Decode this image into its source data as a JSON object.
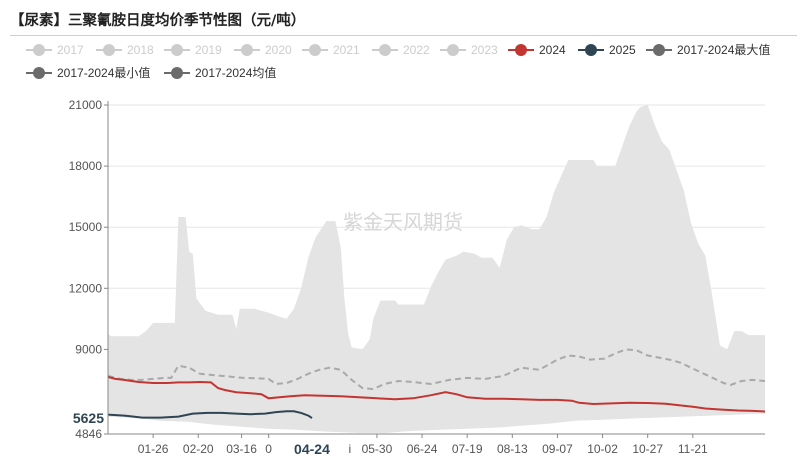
{
  "title": "【尿素】三聚氰胺日度均价季节性图（元/吨）",
  "watermark": "紫金天风期货",
  "colors": {
    "band": "#e4e4e4",
    "legend_inactive": "#cccccc",
    "series_2024": "#c23531",
    "series_2025": "#2f4554",
    "stat": "#6b6b6b",
    "average_line": "#a9a9a9",
    "grid": "#e6e6e6",
    "axis": "#888888"
  },
  "legend": [
    {
      "label": "2017",
      "active": false
    },
    {
      "label": "2018",
      "active": false
    },
    {
      "label": "2019",
      "active": false
    },
    {
      "label": "2020",
      "active": false
    },
    {
      "label": "2021",
      "active": false
    },
    {
      "label": "2022",
      "active": false
    },
    {
      "label": "2023",
      "active": false
    },
    {
      "label": "2024",
      "active": true,
      "color": "#c23531"
    },
    {
      "label": "2025",
      "active": true,
      "color": "#2f4554"
    },
    {
      "label": "2017-2024最大值",
      "active": true,
      "color": "#6b6b6b"
    },
    {
      "label": "2017-2024最小值",
      "active": true,
      "color": "#6b6b6b"
    },
    {
      "label": "2017-2024均值",
      "active": true,
      "color": "#6b6b6b"
    }
  ],
  "chart_data": {
    "type": "line",
    "y_axis": {
      "min": 4846,
      "max": 21000,
      "ticks": [
        "21000",
        "18000",
        "15000",
        "12000",
        "9000",
        "4846"
      ]
    },
    "x_axis": {
      "day_range": [
        1,
        365
      ],
      "ticks": [
        {
          "label": "01-26",
          "day": 26
        },
        {
          "label": "02-20",
          "day": 51
        },
        {
          "label": "03-16",
          "day": 75
        },
        {
          "label": "0",
          "day": 90
        },
        {
          "label": "05-30",
          "day": 150
        },
        {
          "label": "06-24",
          "day": 175
        },
        {
          "label": "07-19",
          "day": 200
        },
        {
          "label": "08-13",
          "day": 225
        },
        {
          "label": "09-07",
          "day": 250
        },
        {
          "label": "10-02",
          "day": 275
        },
        {
          "label": "10-27",
          "day": 300
        },
        {
          "label": "11-21",
          "day": 325
        }
      ],
      "stray_mark": {
        "label": "i",
        "day": 135
      }
    },
    "crosshair": {
      "x_label": "04-24",
      "x_day": 114,
      "y_label": "5625",
      "y_value": 5625
    },
    "band_max": [
      [
        1,
        9750
      ],
      [
        3,
        9650
      ],
      [
        18,
        9650
      ],
      [
        22,
        9900
      ],
      [
        26,
        10300
      ],
      [
        38,
        10300
      ],
      [
        40,
        15500
      ],
      [
        44,
        15500
      ],
      [
        46,
        13800
      ],
      [
        48,
        13700
      ],
      [
        50,
        11500
      ],
      [
        55,
        10900
      ],
      [
        62,
        10700
      ],
      [
        70,
        10700
      ],
      [
        72,
        10000
      ],
      [
        74,
        11000
      ],
      [
        82,
        11000
      ],
      [
        90,
        10800
      ],
      [
        96,
        10600
      ],
      [
        100,
        10500
      ],
      [
        104,
        11000
      ],
      [
        108,
        12000
      ],
      [
        112,
        13500
      ],
      [
        116,
        14500
      ],
      [
        122,
        15300
      ],
      [
        127,
        15300
      ],
      [
        130,
        14000
      ],
      [
        132,
        11500
      ],
      [
        134,
        9800
      ],
      [
        136,
        9100
      ],
      [
        142,
        9000
      ],
      [
        146,
        9500
      ],
      [
        148,
        10500
      ],
      [
        152,
        11400
      ],
      [
        160,
        11400
      ],
      [
        162,
        11200
      ],
      [
        170,
        11200
      ],
      [
        176,
        11200
      ],
      [
        180,
        12100
      ],
      [
        184,
        12800
      ],
      [
        188,
        13400
      ],
      [
        194,
        13600
      ],
      [
        198,
        13800
      ],
      [
        204,
        13700
      ],
      [
        208,
        13500
      ],
      [
        214,
        13500
      ],
      [
        218,
        13000
      ],
      [
        222,
        14400
      ],
      [
        226,
        15000
      ],
      [
        230,
        15100
      ],
      [
        236,
        14900
      ],
      [
        240,
        14900
      ],
      [
        244,
        15500
      ],
      [
        248,
        16700
      ],
      [
        252,
        17500
      ],
      [
        256,
        18300
      ],
      [
        270,
        18300
      ],
      [
        272,
        18000
      ],
      [
        282,
        18000
      ],
      [
        286,
        19000
      ],
      [
        290,
        20000
      ],
      [
        294,
        20700
      ],
      [
        296,
        20900
      ],
      [
        300,
        21000
      ],
      [
        304,
        20000
      ],
      [
        308,
        19200
      ],
      [
        312,
        18800
      ],
      [
        316,
        17800
      ],
      [
        320,
        16800
      ],
      [
        324,
        15200
      ],
      [
        328,
        14200
      ],
      [
        332,
        13600
      ],
      [
        336,
        11500
      ],
      [
        340,
        9200
      ],
      [
        344,
        9000
      ],
      [
        348,
        9900
      ],
      [
        352,
        9900
      ],
      [
        356,
        9700
      ],
      [
        365,
        9700
      ]
    ],
    "band_min": [
      [
        1,
        5700
      ],
      [
        20,
        5600
      ],
      [
        30,
        5500
      ],
      [
        45,
        5450
      ],
      [
        60,
        5300
      ],
      [
        75,
        5200
      ],
      [
        90,
        5100
      ],
      [
        105,
        5050
      ],
      [
        115,
        5000
      ],
      [
        125,
        4950
      ],
      [
        140,
        4900
      ],
      [
        155,
        4900
      ],
      [
        170,
        5000
      ],
      [
        185,
        5050
      ],
      [
        200,
        5100
      ],
      [
        215,
        5150
      ],
      [
        230,
        5250
      ],
      [
        245,
        5350
      ],
      [
        260,
        5500
      ],
      [
        275,
        5550
      ],
      [
        290,
        5600
      ],
      [
        305,
        5650
      ],
      [
        320,
        5700
      ],
      [
        335,
        5750
      ],
      [
        350,
        5800
      ],
      [
        365,
        5850
      ]
    ],
    "average": [
      [
        1,
        7700
      ],
      [
        8,
        7550
      ],
      [
        14,
        7500
      ],
      [
        20,
        7500
      ],
      [
        26,
        7550
      ],
      [
        32,
        7600
      ],
      [
        36,
        7600
      ],
      [
        40,
        8200
      ],
      [
        46,
        8100
      ],
      [
        52,
        7800
      ],
      [
        58,
        7750
      ],
      [
        64,
        7700
      ],
      [
        70,
        7650
      ],
      [
        76,
        7600
      ],
      [
        84,
        7580
      ],
      [
        90,
        7550
      ],
      [
        94,
        7300
      ],
      [
        100,
        7350
      ],
      [
        106,
        7550
      ],
      [
        112,
        7800
      ],
      [
        118,
        8000
      ],
      [
        124,
        8100
      ],
      [
        130,
        8000
      ],
      [
        136,
        7500
      ],
      [
        142,
        7100
      ],
      [
        148,
        7050
      ],
      [
        154,
        7300
      ],
      [
        162,
        7450
      ],
      [
        170,
        7400
      ],
      [
        180,
        7300
      ],
      [
        190,
        7500
      ],
      [
        200,
        7600
      ],
      [
        210,
        7550
      ],
      [
        220,
        7700
      ],
      [
        230,
        8100
      ],
      [
        240,
        8000
      ],
      [
        250,
        8500
      ],
      [
        256,
        8700
      ],
      [
        262,
        8650
      ],
      [
        268,
        8500
      ],
      [
        276,
        8550
      ],
      [
        282,
        8800
      ],
      [
        288,
        9000
      ],
      [
        294,
        8950
      ],
      [
        300,
        8700
      ],
      [
        306,
        8600
      ],
      [
        312,
        8500
      ],
      [
        318,
        8350
      ],
      [
        324,
        8100
      ],
      [
        330,
        7850
      ],
      [
        336,
        7600
      ],
      [
        342,
        7350
      ],
      [
        346,
        7250
      ],
      [
        352,
        7450
      ],
      [
        358,
        7500
      ],
      [
        365,
        7450
      ]
    ],
    "series_2024": [
      [
        1,
        7650
      ],
      [
        5,
        7550
      ],
      [
        10,
        7500
      ],
      [
        18,
        7400
      ],
      [
        26,
        7350
      ],
      [
        34,
        7350
      ],
      [
        40,
        7380
      ],
      [
        46,
        7380
      ],
      [
        52,
        7400
      ],
      [
        58,
        7380
      ],
      [
        62,
        7100
      ],
      [
        66,
        7000
      ],
      [
        72,
        6900
      ],
      [
        80,
        6850
      ],
      [
        86,
        6800
      ],
      [
        90,
        6600
      ],
      [
        96,
        6650
      ],
      [
        102,
        6700
      ],
      [
        110,
        6750
      ],
      [
        120,
        6720
      ],
      [
        130,
        6700
      ],
      [
        140,
        6650
      ],
      [
        150,
        6600
      ],
      [
        160,
        6550
      ],
      [
        170,
        6600
      ],
      [
        180,
        6750
      ],
      [
        188,
        6900
      ],
      [
        194,
        6800
      ],
      [
        200,
        6650
      ],
      [
        210,
        6580
      ],
      [
        220,
        6580
      ],
      [
        230,
        6550
      ],
      [
        240,
        6520
      ],
      [
        250,
        6520
      ],
      [
        258,
        6480
      ],
      [
        262,
        6380
      ],
      [
        270,
        6320
      ],
      [
        280,
        6350
      ],
      [
        290,
        6380
      ],
      [
        300,
        6370
      ],
      [
        310,
        6330
      ],
      [
        318,
        6250
      ],
      [
        325,
        6180
      ],
      [
        332,
        6100
      ],
      [
        340,
        6050
      ],
      [
        350,
        6000
      ],
      [
        358,
        5980
      ],
      [
        365,
        5950
      ]
    ],
    "series_2025": [
      [
        1,
        5800
      ],
      [
        10,
        5750
      ],
      [
        20,
        5650
      ],
      [
        30,
        5650
      ],
      [
        40,
        5700
      ],
      [
        48,
        5850
      ],
      [
        56,
        5880
      ],
      [
        64,
        5880
      ],
      [
        72,
        5850
      ],
      [
        80,
        5820
      ],
      [
        88,
        5850
      ],
      [
        94,
        5920
      ],
      [
        100,
        5960
      ],
      [
        104,
        5960
      ],
      [
        108,
        5880
      ],
      [
        112,
        5750
      ],
      [
        114,
        5625
      ]
    ]
  }
}
